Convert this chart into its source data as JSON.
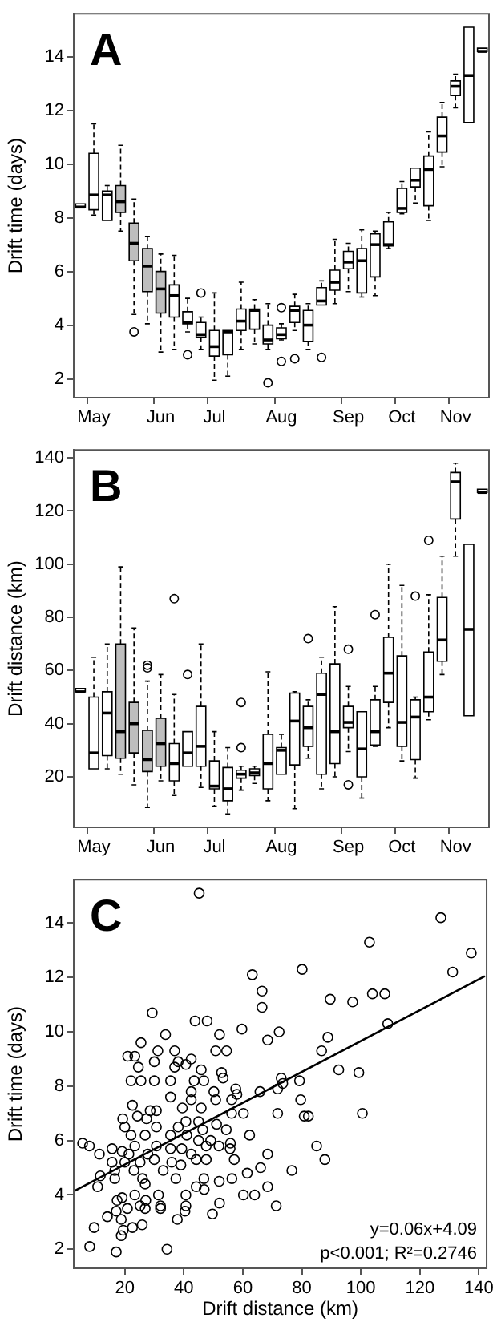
{
  "chart_data": [
    {
      "type": "box",
      "title": "A",
      "ylabel": "Drift time (days)",
      "categories": [
        null,
        "May",
        null,
        null,
        null,
        null,
        "Jun",
        null,
        null,
        null,
        "Jul",
        null,
        null,
        null,
        null,
        "Aug",
        null,
        null,
        null,
        null,
        "Sep",
        null,
        null,
        null,
        "Oct",
        null,
        null,
        null,
        "Nov",
        null,
        null
      ],
      "colors": [
        "#ffffff",
        "#ffffff",
        "#ffffff",
        "#bebebe",
        "#bebebe",
        "#bebebe",
        "#bebebe",
        "#ffffff",
        "#ffffff",
        "#ffffff",
        "#ffffff",
        "#ffffff",
        "#ffffff",
        "#ffffff",
        "#ffffff",
        "#ffffff",
        "#ffffff",
        "#ffffff",
        "#ffffff",
        "#ffffff",
        "#ffffff",
        "#ffffff",
        "#ffffff",
        "#ffffff",
        "#ffffff",
        "#ffffff",
        "#ffffff",
        "#ffffff",
        "#ffffff",
        "#ffffff",
        "#ffffff"
      ],
      "boxes": [
        {
          "low": 8.4,
          "q1": 8.4,
          "median": 8.4,
          "q3": 8.4,
          "high": 8.4
        },
        {
          "low": 8.1,
          "q1": 8.3,
          "median": 8.85,
          "q3": 10.4,
          "high": 11.5
        },
        {
          "low": 7.9,
          "q1": 7.9,
          "median": 8.85,
          "q3": 9.0,
          "high": 9.2
        },
        {
          "low": 7.5,
          "q1": 8.2,
          "median": 8.6,
          "q3": 9.2,
          "high": 10.7
        },
        {
          "low": 4.4,
          "q1": 6.4,
          "median": 7.05,
          "q3": 7.8,
          "high": 8.7,
          "outliers": [
            3.75
          ]
        },
        {
          "low": 4.05,
          "q1": 5.25,
          "median": 6.2,
          "q3": 6.85,
          "high": 7.3
        },
        {
          "low": 3.0,
          "q1": 4.45,
          "median": 5.35,
          "q3": 6.0,
          "high": 6.65
        },
        {
          "low": 3.1,
          "q1": 4.3,
          "median": 5.1,
          "q3": 5.5,
          "high": 6.6
        },
        {
          "low": 3.75,
          "q1": 4.05,
          "median": 4.1,
          "q3": 4.5,
          "high": 5.0,
          "outliers": [
            2.9
          ]
        },
        {
          "low": 3.1,
          "q1": 3.55,
          "median": 3.65,
          "q3": 4.1,
          "high": 4.3,
          "outliers": [
            5.2
          ]
        },
        {
          "low": 1.95,
          "q1": 2.85,
          "median": 3.2,
          "q3": 3.8,
          "high": 5.2
        },
        {
          "low": 2.1,
          "q1": 2.9,
          "median": 3.75,
          "q3": 3.8,
          "high": 3.8
        },
        {
          "low": 3.1,
          "q1": 3.8,
          "median": 4.15,
          "q3": 4.6,
          "high": 5.6
        },
        {
          "low": 3.3,
          "q1": 3.85,
          "median": 4.55,
          "q3": 4.6,
          "high": 4.95
        },
        {
          "low": 3.1,
          "q1": 3.3,
          "median": 3.45,
          "q3": 4.0,
          "high": 4.8,
          "outliers": [
            1.85
          ]
        },
        {
          "low": 3.45,
          "q1": 3.5,
          "median": 3.65,
          "q3": 3.9,
          "high": 4.05,
          "outliers": [
            4.65,
            2.65
          ]
        },
        {
          "low": 3.8,
          "q1": 4.1,
          "median": 4.55,
          "q3": 4.7,
          "high": 5.15,
          "outliers": [
            2.75
          ]
        },
        {
          "low": 3.1,
          "q1": 3.4,
          "median": 4.0,
          "q3": 4.55,
          "high": 4.8
        },
        {
          "low": 4.75,
          "q1": 4.75,
          "median": 4.9,
          "q3": 5.4,
          "high": 5.65,
          "outliers": [
            2.8
          ]
        },
        {
          "low": 4.8,
          "q1": 5.3,
          "median": 5.6,
          "q3": 6.05,
          "high": 7.2
        },
        {
          "low": 5.25,
          "q1": 6.1,
          "median": 6.35,
          "q3": 6.75,
          "high": 7.05
        },
        {
          "low": 5.05,
          "q1": 5.2,
          "median": 6.4,
          "q3": 6.85,
          "high": 7.55
        },
        {
          "low": 5.1,
          "q1": 5.8,
          "median": 7.0,
          "q3": 7.4,
          "high": 7.5
        },
        {
          "low": 6.85,
          "q1": 6.95,
          "median": 7.0,
          "q3": 7.85,
          "high": 8.2
        },
        {
          "low": 8.15,
          "q1": 8.2,
          "median": 8.35,
          "q3": 9.1,
          "high": 9.35
        },
        {
          "low": 8.55,
          "q1": 9.15,
          "median": 9.4,
          "q3": 9.85,
          "high": 9.85
        },
        {
          "low": 7.9,
          "q1": 8.45,
          "median": 9.8,
          "q3": 10.3,
          "high": 11.2
        },
        {
          "low": 9.9,
          "q1": 10.45,
          "median": 11.05,
          "q3": 11.75,
          "high": 12.3
        },
        {
          "low": 12.1,
          "q1": 12.55,
          "median": 12.9,
          "q3": 13.1,
          "high": 13.35
        },
        {
          "low": 11.55,
          "q1": 11.55,
          "median": 13.3,
          "q3": 15.1,
          "high": 15.1
        },
        {
          "low": 14.2,
          "q1": 14.2,
          "median": 14.2,
          "q3": 14.2,
          "high": 14.2
        }
      ],
      "ylim": [
        1.3,
        15.6
      ],
      "yticks": [
        2,
        4,
        6,
        8,
        10,
        12,
        14
      ]
    },
    {
      "type": "box",
      "title": "B",
      "ylabel": "Drift distance (km)",
      "categories": [
        null,
        "May",
        null,
        null,
        null,
        null,
        "Jun",
        null,
        null,
        null,
        "Jul",
        null,
        null,
        null,
        null,
        "Aug",
        null,
        null,
        null,
        null,
        "Sep",
        null,
        null,
        null,
        "Oct",
        null,
        null,
        null,
        "Nov",
        null,
        null
      ],
      "colors": [
        "#ffffff",
        "#ffffff",
        "#ffffff",
        "#bebebe",
        "#bebebe",
        "#bebebe",
        "#bebebe",
        "#ffffff",
        "#ffffff",
        "#ffffff",
        "#ffffff",
        "#ffffff",
        "#ffffff",
        "#ffffff",
        "#ffffff",
        "#ffffff",
        "#ffffff",
        "#ffffff",
        "#ffffff",
        "#ffffff",
        "#ffffff",
        "#ffffff",
        "#ffffff",
        "#ffffff",
        "#ffffff",
        "#ffffff",
        "#ffffff",
        "#ffffff",
        "#ffffff",
        "#ffffff",
        "#ffffff"
      ],
      "boxes": [
        {
          "low": 52,
          "q1": 52,
          "median": 52,
          "q3": 52,
          "high": 52
        },
        {
          "low": 23,
          "q1": 23,
          "median": 29,
          "q3": 50,
          "high": 65
        },
        {
          "low": 23,
          "q1": 28,
          "median": 44,
          "q3": 52,
          "high": 70
        },
        {
          "low": 21,
          "q1": 27,
          "median": 37,
          "q3": 70,
          "high": 99
        },
        {
          "low": 17,
          "q1": 29,
          "median": 40,
          "q3": 48,
          "high": 76
        },
        {
          "low": 8.5,
          "q1": 22,
          "median": 26.5,
          "q3": 37.5,
          "high": 56,
          "outliers": [
            61,
            62
          ]
        },
        {
          "low": 18.5,
          "q1": 24,
          "median": 32.5,
          "q3": 42,
          "high": 58.5
        },
        {
          "low": 13,
          "q1": 18.5,
          "median": 25,
          "q3": 32.5,
          "high": 51,
          "outliers": [
            87
          ]
        },
        {
          "low": 24,
          "q1": 24,
          "median": 29,
          "q3": 37,
          "high": 37,
          "outliers": [
            58.5
          ]
        },
        {
          "low": 16,
          "q1": 24,
          "median": 31.5,
          "q3": 46.5,
          "high": 70
        },
        {
          "low": 9,
          "q1": 15.5,
          "median": 16.5,
          "q3": 26,
          "high": 37
        },
        {
          "low": 6,
          "q1": 11,
          "median": 15.5,
          "q3": 23.5,
          "high": 31
        },
        {
          "low": 15,
          "q1": 19.5,
          "median": 21,
          "q3": 22.5,
          "high": 24,
          "outliers": [
            48,
            31
          ]
        },
        {
          "low": 17.5,
          "q1": 20.5,
          "median": 21.5,
          "q3": 23,
          "high": 24
        },
        {
          "low": 11,
          "q1": 15.5,
          "median": 25,
          "q3": 36,
          "high": 59.5
        },
        {
          "low": 21,
          "q1": 21,
          "median": 30,
          "q3": 31,
          "high": 36
        },
        {
          "low": 8,
          "q1": 24.5,
          "median": 41,
          "q3": 51.5,
          "high": 52
        },
        {
          "low": 27,
          "q1": 31.5,
          "median": 38.5,
          "q3": 46.5,
          "high": 49,
          "outliers": [
            72
          ]
        },
        {
          "low": 15.5,
          "q1": 21,
          "median": 51,
          "q3": 59,
          "high": 65
        },
        {
          "low": 20,
          "q1": 25,
          "median": 37,
          "q3": 62.5,
          "high": 84
        },
        {
          "low": 29.5,
          "q1": 38.5,
          "median": 40.5,
          "q3": 46.5,
          "high": 54,
          "outliers": [
            68,
            17
          ]
        },
        {
          "low": 12,
          "q1": 20,
          "median": 30.5,
          "q3": 44.5,
          "high": 44.5
        },
        {
          "low": 31.5,
          "q1": 32,
          "median": 37,
          "q3": 49,
          "high": 54,
          "outliers": [
            81
          ]
        },
        {
          "low": 38.5,
          "q1": 48,
          "median": 59,
          "q3": 72.5,
          "high": 100
        },
        {
          "low": 26,
          "q1": 31.5,
          "median": 40.5,
          "q3": 65.5,
          "high": 92
        },
        {
          "low": 19.5,
          "q1": 26.5,
          "median": 42.5,
          "q3": 49,
          "high": 50,
          "outliers": [
            88
          ]
        },
        {
          "low": 41.5,
          "q1": 44.5,
          "median": 50,
          "q3": 67,
          "high": 88.5,
          "outliers": [
            109
          ]
        },
        {
          "low": 58.5,
          "q1": 63.5,
          "median": 71.5,
          "q3": 87.5,
          "high": 103
        },
        {
          "low": 103,
          "q1": 117,
          "median": 131,
          "q3": 134.5,
          "high": 138
        },
        {
          "low": 43,
          "q1": 43,
          "median": 75.5,
          "q3": 107.5,
          "high": 107.5
        },
        {
          "low": 127,
          "q1": 127,
          "median": 127,
          "q3": 127,
          "high": 127
        }
      ],
      "ylim": [
        1,
        143
      ],
      "yticks": [
        20,
        40,
        60,
        80,
        100,
        120,
        140
      ]
    },
    {
      "type": "scatter",
      "title": "C",
      "xlabel": "Drift distance (km)",
      "ylabel": "Drift time (days)",
      "series": [
        {
          "type": "scatter",
          "color": "#000000",
          "marker": "circle",
          "x": [
            45.2,
            127.1,
            102.9,
            137.4,
            80.1,
            63.2,
            131.1,
            89.6,
            108.1,
            103.9,
            97.2,
            66.5,
            66.5,
            109.1,
            29.3,
            43.8,
            47.9,
            33.8,
            52.1,
            59.7,
            72.3,
            68.4,
            25.5,
            88.8,
            86.7,
            54.5,
            31.2,
            36.9,
            50.8,
            21,
            23.4,
            30,
            38.1,
            42.5,
            24.6,
            36.9,
            40.7,
            45.9,
            52.8,
            92.5,
            99.3,
            53.3,
            73,
            73.5,
            79.2,
            35.5,
            22.1,
            25.5,
            30,
            43.5,
            46.8,
            71.8,
            57.6,
            50.2,
            42.5,
            58,
            50.8,
            79.6,
            65.8,
            35.5,
            42.5,
            56.2,
            22.6,
            28.6,
            30.7,
            39.5,
            45.9,
            60.2,
            71.8,
            100.5,
            80.8,
            82.2,
            19.3,
            24.3,
            27.4,
            40.7,
            45,
            51.1,
            56.2,
            20,
            30.7,
            38.1,
            46.4,
            54.4,
            41,
            62.3,
            22.1,
            26.9,
            35.5,
            49.1,
            45,
            55.8,
            5.7,
            8,
            15.7,
            19.1,
            23.4,
            30.7,
            35.5,
            39.3,
            47.6,
            51.9,
            55.7,
            85,
            11.4,
            21.4,
            27.8,
            42.5,
            68.4,
            15.7,
            20,
            25.2,
            30,
            35.9,
            44.2,
            47.6,
            57.1,
            87.8,
            16.6,
            23.1,
            33,
            39,
            66,
            76.6,
            11.7,
            16.6,
            26,
            37.3,
            46.8,
            56.3,
            61.5,
            52,
            10.8,
            26.9,
            44.2,
            46.9,
            68.4,
            60.2,
            64,
            19.1,
            23.4,
            31.4,
            27.1,
            40.7,
            17.4,
            20.9,
            25.2,
            40.7,
            32.1,
            52.1,
            71.3,
            17.1,
            26.9,
            18.8,
            32.1,
            40.4,
            37.8,
            25.9,
            14.1,
            49.7,
            9.6,
            19.5,
            22.6,
            18.8,
            8.1,
            34.3,
            17.1
          ],
          "values": [
            15.1,
            14.2,
            13.3,
            12.9,
            12.3,
            12.1,
            12.2,
            11.2,
            11.4,
            11.4,
            11.1,
            11.5,
            10.9,
            10.3,
            10.7,
            10.4,
            10.4,
            9.9,
            9.9,
            10.1,
            10,
            9.7,
            9.6,
            9.8,
            9.3,
            9.3,
            9.3,
            9.3,
            9.3,
            9.1,
            9.1,
            8.9,
            8.9,
            9,
            8.7,
            8.7,
            8.8,
            8.6,
            8.5,
            8.6,
            8.5,
            8.3,
            8.3,
            8.1,
            8.2,
            8.2,
            8.2,
            8.2,
            8.2,
            8.2,
            8.2,
            7.9,
            7.9,
            7.8,
            7.8,
            7.7,
            7.5,
            7.5,
            7.8,
            7.6,
            7.5,
            7.5,
            7.3,
            7.1,
            7.1,
            7.2,
            7.2,
            7,
            7,
            7,
            6.9,
            6.9,
            6.8,
            6.9,
            6.8,
            6.7,
            6.7,
            6.6,
            7,
            6.5,
            6.5,
            6.5,
            6.4,
            6.4,
            6.2,
            6.2,
            6.2,
            6.2,
            6.2,
            6,
            6,
            5.9,
            5.9,
            5.8,
            5.7,
            5.6,
            5.8,
            5.8,
            5.7,
            5.7,
            5.8,
            5.8,
            5.7,
            5.8,
            5.5,
            5.5,
            5.5,
            5.5,
            5.5,
            5.2,
            5.2,
            5.2,
            5.3,
            5.2,
            5.3,
            5.3,
            5.3,
            5.3,
            4.9,
            4.9,
            4.9,
            5.1,
            5,
            4.9,
            4.7,
            4.6,
            4.6,
            4.6,
            4.6,
            4.6,
            4.8,
            4.5,
            4.3,
            4.4,
            4.3,
            4.2,
            4.3,
            4,
            4,
            3.9,
            4,
            4,
            3.8,
            4,
            3.8,
            3.5,
            3.6,
            3.6,
            3.6,
            3.7,
            3.6,
            3.4,
            3.5,
            3.1,
            3.5,
            3.4,
            3.1,
            2.9,
            3.2,
            3.3,
            2.8,
            2.7,
            2.8,
            2.5,
            2.1,
            2,
            1.9
          ]
        },
        {
          "type": "line",
          "color": "#000000",
          "marker": "none",
          "x": [
            3,
            142
          ],
          "values": [
            4.15,
            12.05
          ]
        }
      ],
      "xlim": [
        2.7,
        142.6
      ],
      "xticks": [
        20,
        40,
        60,
        80,
        100,
        120,
        140
      ],
      "ylim": [
        1.3,
        15.6
      ],
      "yticks": [
        2,
        4,
        6,
        8,
        10,
        12,
        14
      ],
      "annotations": [
        "y=0.06x+4.09",
        "p<0.001; R²=0.2746"
      ]
    }
  ]
}
